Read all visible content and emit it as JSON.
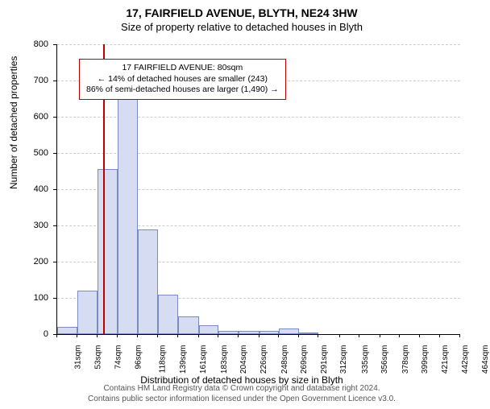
{
  "title": "17, FAIRFIELD AVENUE, BLYTH, NE24 3HW",
  "subtitle": "Size of property relative to detached houses in Blyth",
  "chart": {
    "type": "histogram",
    "ylabel": "Number of detached properties",
    "xlabel": "Distribution of detached houses by size in Blyth",
    "ylim": [
      0,
      800
    ],
    "ytick_step": 100,
    "background_color": "#ffffff",
    "grid_color": "#cccccc",
    "bar_fill": "#d6ddf2",
    "bar_border": "#7a8bc4",
    "ref_line_color": "#c00000",
    "ref_line_x": 80,
    "x_ticks": [
      31,
      53,
      74,
      96,
      118,
      139,
      161,
      183,
      204,
      226,
      248,
      269,
      291,
      312,
      335,
      356,
      378,
      399,
      421,
      442,
      464
    ],
    "x_tick_suffix": "sqm",
    "bars": [
      {
        "x0": 31,
        "x1": 53,
        "y": 20
      },
      {
        "x0": 53,
        "x1": 74,
        "y": 120
      },
      {
        "x0": 74,
        "x1": 96,
        "y": 455
      },
      {
        "x0": 96,
        "x1": 118,
        "y": 720
      },
      {
        "x0": 118,
        "x1": 139,
        "y": 290
      },
      {
        "x0": 139,
        "x1": 161,
        "y": 110
      },
      {
        "x0": 161,
        "x1": 183,
        "y": 50
      },
      {
        "x0": 183,
        "x1": 204,
        "y": 25
      },
      {
        "x0": 204,
        "x1": 226,
        "y": 10
      },
      {
        "x0": 226,
        "x1": 248,
        "y": 10
      },
      {
        "x0": 248,
        "x1": 269,
        "y": 8
      },
      {
        "x0": 269,
        "x1": 291,
        "y": 15
      },
      {
        "x0": 291,
        "x1": 312,
        "y": 3
      },
      {
        "x0": 312,
        "x1": 335,
        "y": 0
      },
      {
        "x0": 335,
        "x1": 356,
        "y": 0
      },
      {
        "x0": 356,
        "x1": 378,
        "y": 0
      },
      {
        "x0": 378,
        "x1": 399,
        "y": 0
      },
      {
        "x0": 399,
        "x1": 421,
        "y": 0
      },
      {
        "x0": 421,
        "x1": 442,
        "y": 0
      },
      {
        "x0": 442,
        "x1": 464,
        "y": 0
      }
    ]
  },
  "annotation": {
    "line1": "17 FAIRFIELD AVENUE: 80sqm",
    "line2": "← 14% of detached houses are smaller (243)",
    "line3": "86% of semi-detached houses are larger (1,490) →",
    "border_color": "#c00000",
    "fontsize": 10.5
  },
  "footer": {
    "line1": "Contains HM Land Registry data © Crown copyright and database right 2024.",
    "line2": "Contains public sector information licensed under the Open Government Licence v3.0.",
    "color": "#555555"
  }
}
